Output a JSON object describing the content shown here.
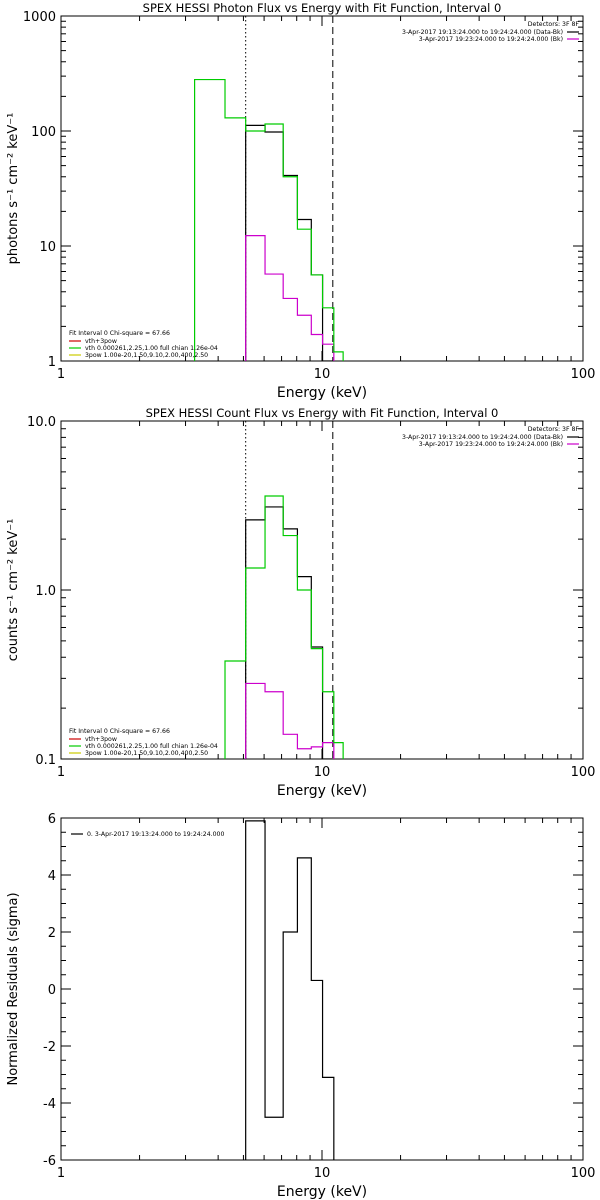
{
  "chart_data": [
    {
      "type": "line",
      "title": "SPEX HESSI Photon Flux vs Energy with Fit Function, Interval 0",
      "xlabel": "Energy (keV)",
      "ylabel": "photons s⁻¹ cm⁻² keV⁻¹",
      "xscale": "log",
      "yscale": "log",
      "xlim": [
        1,
        100
      ],
      "ylim": [
        1,
        1000
      ],
      "x_tick_labels": [
        {
          "value": 1,
          "label": "1"
        },
        {
          "value": 10,
          "label": "10"
        },
        {
          "value": 100,
          "label": "100"
        }
      ],
      "y_tick_labels": [
        {
          "value": 1,
          "label": "1"
        },
        {
          "value": 10,
          "label": "10"
        },
        {
          "value": 100,
          "label": "100"
        },
        {
          "value": 1000,
          "label": "1000"
        }
      ],
      "vlines": [
        {
          "x": 5.1,
          "style": "dotted"
        },
        {
          "x": 11.0,
          "style": "dashed"
        }
      ],
      "legend_topright": {
        "header": "Detectors: 3F 8F",
        "entries": [
          {
            "label": "3-Apr-2017 19:13:24.000 to 19:24:24.000 (Data-Bk)",
            "color": "#000000"
          },
          {
            "label": "3-Apr-2017 19:23:24.000 to 19:24:24.000 (Bk)",
            "color": "#cc00cc"
          }
        ]
      },
      "legend_bottomleft": {
        "header": "Fit Interval 0   Chi-square = 67.66",
        "entries": [
          {
            "label": "vth+3pow",
            "color": "#cc0000"
          },
          {
            "label": "vth 0.000261,2.25,1.00   full chian 1.26e-04",
            "color": "#00cc00"
          },
          {
            "label": "3pow 1.00e-20,1.50,9.10,2.00,400,2.50",
            "color": "#cccc00"
          }
        ]
      },
      "series": [
        {
          "color": "#000000",
          "edges": [
            5.1,
            6.05,
            7.1,
            8.05,
            9.1,
            10.05,
            11.1
          ],
          "values": [
            112,
            98,
            41,
            17,
            5.6,
            1
          ]
        },
        {
          "color": "#cc00cc",
          "edges": [
            5.1,
            6.05,
            7.1,
            8.05,
            9.1,
            10.05,
            11.1
          ],
          "values": [
            12.3,
            5.7,
            3.5,
            2.5,
            1.7,
            1.4
          ]
        },
        {
          "color": "#00cc00",
          "edges": [
            3.25,
            4.25,
            5.1,
            6.05,
            7.1,
            8.05,
            9.1,
            10.05,
            11.1,
            12.05
          ],
          "values": [
            280,
            130,
            100,
            115,
            40,
            14,
            5.6,
            2.9,
            1.2
          ]
        }
      ]
    },
    {
      "type": "line",
      "title": "SPEX HESSI Count Flux vs Energy with Fit Function, Interval 0",
      "xlabel": "Energy (keV)",
      "ylabel": "counts s⁻¹ cm⁻² keV⁻¹",
      "xscale": "log",
      "yscale": "log",
      "xlim": [
        1,
        100
      ],
      "ylim": [
        0.1,
        10
      ],
      "x_tick_labels": [
        {
          "value": 1,
          "label": "1"
        },
        {
          "value": 10,
          "label": "10"
        },
        {
          "value": 100,
          "label": "100"
        }
      ],
      "y_tick_labels": [
        {
          "value": 0.1,
          "label": "0.1"
        },
        {
          "value": 1,
          "label": "1.0"
        },
        {
          "value": 10,
          "label": "10.0"
        }
      ],
      "vlines": [
        {
          "x": 5.1,
          "style": "dotted"
        },
        {
          "x": 11.0,
          "style": "dashed"
        }
      ],
      "legend_topright": {
        "header": "Detectors: 3F 8F",
        "entries": [
          {
            "label": "3-Apr-2017 19:13:24.000 to 19:24:24.000 (Data-Bk)",
            "color": "#000000"
          },
          {
            "label": "3-Apr-2017 19:23:24.000 to 19:24:24.000 (Bk)",
            "color": "#cc00cc"
          }
        ]
      },
      "legend_bottomleft": {
        "header": "Fit Interval 0   Chi-square = 67.66",
        "entries": [
          {
            "label": "vth+3pow",
            "color": "#cc0000"
          },
          {
            "label": "vth 0.000261,2.25,1.00   full chian 1.26e-04",
            "color": "#00cc00"
          },
          {
            "label": "3pow 1.00e-20,1.50,9.10,2.00,400,2.50",
            "color": "#cccc00"
          }
        ]
      },
      "series": [
        {
          "color": "#000000",
          "edges": [
            5.1,
            6.05,
            7.1,
            8.05,
            9.1,
            10.05,
            11.1
          ],
          "values": [
            2.6,
            3.1,
            2.3,
            1.2,
            0.46,
            0.1
          ]
        },
        {
          "color": "#cc00cc",
          "edges": [
            5.1,
            6.05,
            7.1,
            8.05,
            9.1,
            10.05,
            11.1
          ],
          "values": [
            0.28,
            0.25,
            0.14,
            0.115,
            0.118,
            0.125
          ]
        },
        {
          "color": "#00cc00",
          "edges": [
            4.25,
            5.1,
            6.05,
            7.1,
            8.05,
            9.1,
            10.05,
            11.1,
            12.05
          ],
          "values": [
            0.38,
            1.35,
            3.6,
            2.1,
            1.0,
            0.45,
            0.25,
            0.125
          ]
        }
      ]
    },
    {
      "type": "line",
      "title": "",
      "xlabel": "Energy (keV)",
      "ylabel": "Normalized Residuals (sigma)",
      "xscale": "log",
      "yscale": "linear",
      "xlim": [
        1,
        100
      ],
      "ylim": [
        -6,
        6
      ],
      "x_tick_labels": [
        {
          "value": 1,
          "label": "1"
        },
        {
          "value": 10,
          "label": "10"
        },
        {
          "value": 100,
          "label": "100"
        }
      ],
      "y_tick_labels": [
        {
          "value": -6,
          "label": "-6"
        },
        {
          "value": -4,
          "label": "-4"
        },
        {
          "value": -2,
          "label": "-2"
        },
        {
          "value": 0,
          "label": "0"
        },
        {
          "value": 2,
          "label": "2"
        },
        {
          "value": 4,
          "label": "4"
        },
        {
          "value": 6,
          "label": "6"
        }
      ],
      "legend_topleft": {
        "entries": [
          {
            "label": "0. 3-Apr-2017 19:13:24.000 to 19:24:24.000",
            "color": "#000000"
          }
        ]
      },
      "series": [
        {
          "color": "#000000",
          "edges": [
            5.1,
            6.05,
            7.1,
            8.05,
            9.1,
            10.05,
            11.1
          ],
          "values": [
            5.9,
            -4.5,
            2.0,
            4.6,
            0.3,
            -3.1
          ]
        }
      ]
    }
  ]
}
